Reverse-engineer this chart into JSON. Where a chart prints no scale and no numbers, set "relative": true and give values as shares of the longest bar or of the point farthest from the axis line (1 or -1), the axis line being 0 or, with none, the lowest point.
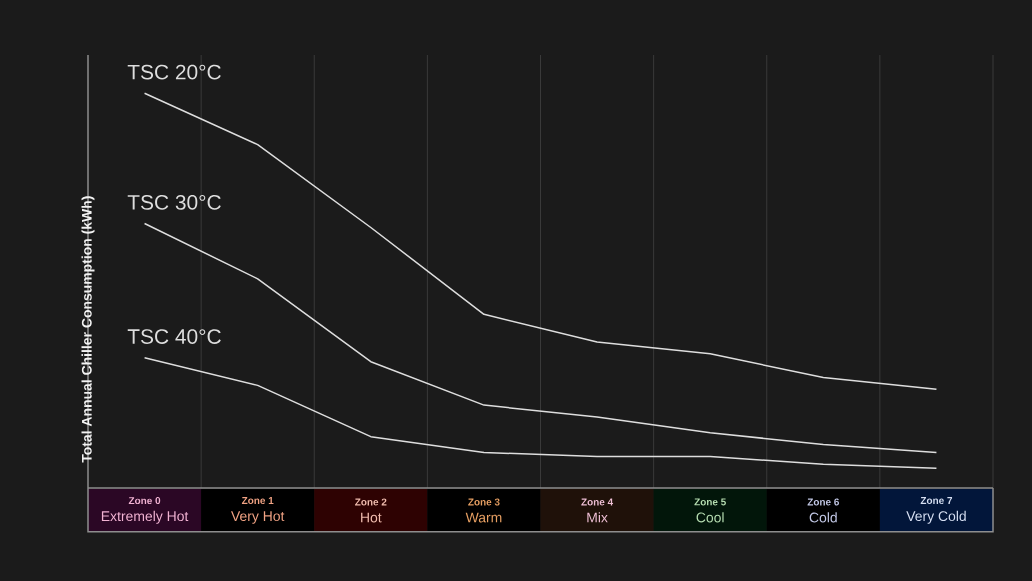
{
  "chart_data": {
    "type": "line",
    "ylabel": "Total Annual Chiller Consumption (kWh)",
    "categories": [
      "**Zone 0** Extremely Hot",
      "**Zone 1** Very Hot",
      "**Zone 2** Hot",
      "**Zone 3** Warm",
      "**Zone 4** Mix",
      "**Zone 5** Cool",
      "**Zone 6** Cold",
      "**Zone 7** Very Cold"
    ],
    "relative": true,
    "grid": "x",
    "series": [
      {
        "name": "TSC 20°C",
        "color": "#dedede",
        "values": [
          1.0,
          0.87,
          0.66,
          0.44,
          0.37,
          0.34,
          0.28,
          0.25
        ]
      },
      {
        "name": "TSC 30°C",
        "color": "#dedede",
        "values": [
          0.67,
          0.53,
          0.32,
          0.21,
          0.18,
          0.14,
          0.11,
          0.09
        ]
      },
      {
        "name": "TSC 40°C",
        "color": "#dedede",
        "values": [
          0.33,
          0.26,
          0.13,
          0.09,
          0.08,
          0.08,
          0.06,
          0.05
        ]
      }
    ]
  }
}
